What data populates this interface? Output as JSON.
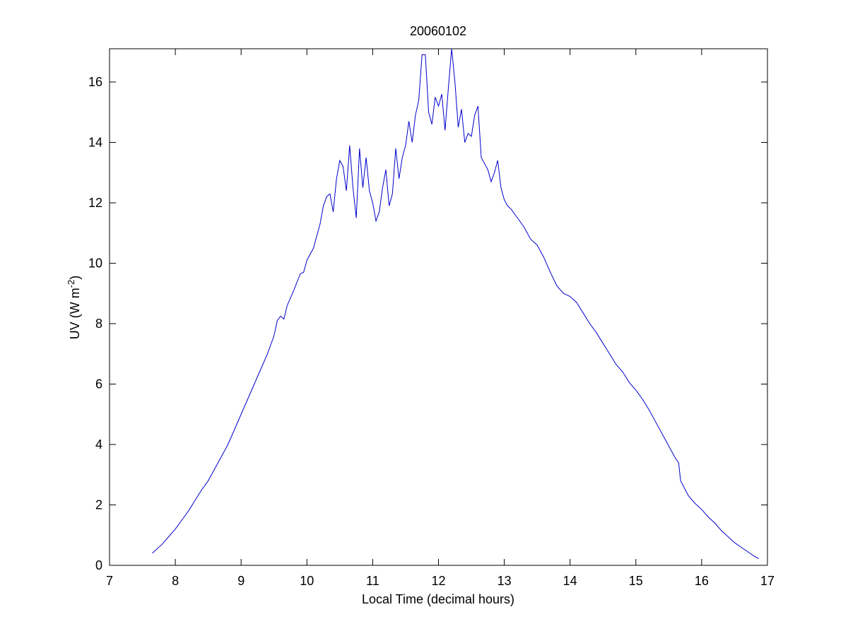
{
  "chart_data": {
    "type": "line",
    "title": "20060102",
    "xlabel": "Local Time (decimal hours)",
    "ylabel": {
      "text": "UV (W m",
      "superscript": "-2",
      "suffix": ")"
    },
    "xlim": [
      7,
      17
    ],
    "xticks": [
      7,
      8,
      9,
      10,
      11,
      12,
      13,
      14,
      15,
      16,
      17
    ],
    "ylim": [
      0,
      17.1
    ],
    "yticks": [
      0,
      2,
      4,
      6,
      8,
      10,
      12,
      14,
      16
    ],
    "series": [
      {
        "color": "#0000cc",
        "x": [
          7.65,
          7.8,
          7.9,
          8.0,
          8.1,
          8.2,
          8.3,
          8.4,
          8.5,
          8.6,
          8.7,
          8.8,
          8.9,
          9.0,
          9.1,
          9.2,
          9.3,
          9.4,
          9.5,
          9.55,
          9.6,
          9.65,
          9.7,
          9.8,
          9.9,
          9.95,
          10.0,
          10.1,
          10.2,
          10.25,
          10.3,
          10.35,
          10.4,
          10.45,
          10.5,
          10.55,
          10.6,
          10.65,
          10.7,
          10.75,
          10.8,
          10.85,
          10.9,
          10.95,
          11.0,
          11.05,
          11.1,
          11.15,
          11.2,
          11.25,
          11.3,
          11.35,
          11.4,
          11.45,
          11.5,
          11.55,
          11.6,
          11.65,
          11.7,
          11.75,
          11.8,
          11.85,
          11.9,
          11.95,
          12.0,
          12.05,
          12.1,
          12.15,
          12.2,
          12.25,
          12.3,
          12.35,
          12.4,
          12.45,
          12.5,
          12.55,
          12.6,
          12.65,
          12.7,
          12.75,
          12.8,
          12.85,
          12.9,
          12.95,
          13.0,
          13.05,
          13.1,
          13.2,
          13.3,
          13.4,
          13.5,
          13.6,
          13.7,
          13.8,
          13.9,
          14.0,
          14.1,
          14.2,
          14.3,
          14.4,
          14.5,
          14.6,
          14.7,
          14.8,
          14.9,
          15.0,
          15.1,
          15.2,
          15.3,
          15.4,
          15.5,
          15.6,
          15.65,
          15.68,
          15.8,
          15.9,
          16.0,
          16.1,
          16.2,
          16.3,
          16.4,
          16.5,
          16.6,
          16.7,
          16.8,
          16.87
        ],
        "values": [
          0.4,
          0.7,
          0.95,
          1.2,
          1.5,
          1.8,
          2.15,
          2.5,
          2.8,
          3.2,
          3.6,
          4.0,
          4.5,
          5.0,
          5.5,
          6.0,
          6.5,
          7.0,
          7.6,
          8.1,
          8.25,
          8.15,
          8.6,
          9.1,
          9.65,
          9.7,
          10.1,
          10.5,
          11.3,
          11.9,
          12.2,
          12.3,
          11.7,
          12.8,
          13.4,
          13.2,
          12.4,
          13.9,
          12.5,
          11.5,
          13.8,
          12.5,
          13.5,
          12.4,
          12.0,
          11.4,
          11.7,
          12.5,
          13.1,
          11.9,
          12.3,
          13.8,
          12.8,
          13.5,
          13.9,
          14.7,
          14.0,
          14.9,
          15.4,
          16.9,
          16.9,
          15.0,
          14.6,
          15.5,
          15.2,
          15.6,
          14.4,
          15.8,
          17.1,
          16.0,
          14.5,
          15.1,
          14.0,
          14.3,
          14.2,
          14.9,
          15.2,
          13.5,
          13.3,
          13.1,
          12.7,
          13.0,
          13.4,
          12.5,
          12.1,
          11.9,
          11.8,
          11.5,
          11.2,
          10.8,
          10.6,
          10.2,
          9.7,
          9.25,
          9.0,
          8.9,
          8.7,
          8.35,
          8.0,
          7.7,
          7.35,
          7.0,
          6.65,
          6.4,
          6.05,
          5.8,
          5.5,
          5.15,
          4.75,
          4.35,
          3.95,
          3.55,
          3.4,
          2.8,
          2.3,
          2.05,
          1.85,
          1.6,
          1.4,
          1.15,
          0.95,
          0.75,
          0.6,
          0.45,
          0.3,
          0.22
        ]
      }
    ]
  }
}
